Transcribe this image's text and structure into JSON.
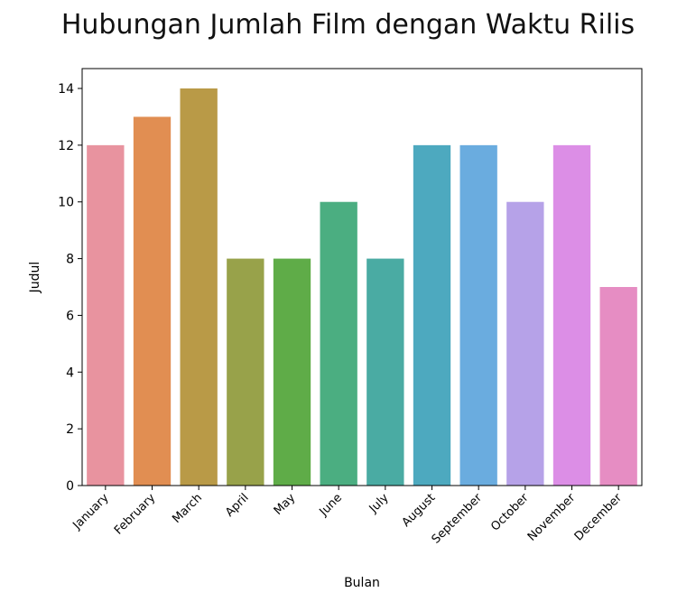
{
  "chart_data": {
    "type": "bar",
    "title": "Hubungan Jumlah Film dengan Waktu Rilis",
    "xlabel": "Bulan",
    "ylabel": "Judul",
    "categories": [
      "January",
      "February",
      "March",
      "April",
      "May",
      "June",
      "July",
      "August",
      "September",
      "October",
      "November",
      "December"
    ],
    "values": [
      12,
      13,
      14,
      8,
      8,
      10,
      8,
      12,
      12,
      10,
      12,
      7
    ],
    "colors": [
      "#e8939f",
      "#e18e52",
      "#b99a47",
      "#98a24a",
      "#5fac48",
      "#4bae81",
      "#4aaba3",
      "#4da9bf",
      "#6aacdf",
      "#b6a2e8",
      "#dc8ee6",
      "#e68dc3"
    ],
    "ylim": [
      0,
      14.7
    ],
    "yticks": [
      0,
      2,
      4,
      6,
      8,
      10,
      12,
      14
    ],
    "grid": false,
    "legend": "none"
  }
}
